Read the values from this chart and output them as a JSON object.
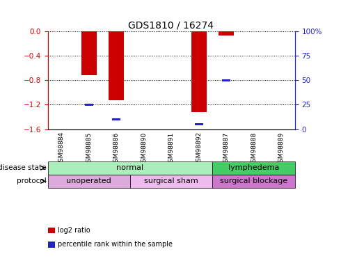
{
  "title": "GDS1810 / 16274",
  "samples": [
    "GSM98884",
    "GSM98885",
    "GSM98886",
    "GSM98890",
    "GSM98891",
    "GSM98892",
    "GSM98887",
    "GSM98888",
    "GSM98889"
  ],
  "log2_ratio": [
    0,
    -0.72,
    -1.13,
    0,
    0,
    -1.32,
    -0.07,
    0,
    0
  ],
  "percentile_rank": [
    null,
    25,
    10,
    null,
    null,
    5,
    50,
    null,
    null
  ],
  "ylim_min": -1.6,
  "ylim_max": 0,
  "yticks": [
    0,
    -0.4,
    -0.8,
    -1.2,
    -1.6
  ],
  "right_yticks": [
    100,
    75,
    50,
    25,
    0
  ],
  "bar_color": "#cc0000",
  "marker_color": "#2222cc",
  "disease_state_groups": [
    {
      "label": "normal",
      "start": 0,
      "end": 6,
      "color": "#aaeebb"
    },
    {
      "label": "lymphedema",
      "start": 6,
      "end": 9,
      "color": "#44cc66"
    }
  ],
  "protocol_groups": [
    {
      "label": "unoperated",
      "start": 0,
      "end": 3,
      "color": "#ddaadd"
    },
    {
      "label": "surgical sham",
      "start": 3,
      "end": 6,
      "color": "#eebbee"
    },
    {
      "label": "surgical blockage",
      "start": 6,
      "end": 9,
      "color": "#cc77cc"
    }
  ],
  "disease_state_label": "disease state",
  "protocol_label": "protocol",
  "legend_items": [
    {
      "label": "log2 ratio",
      "color": "#cc0000"
    },
    {
      "label": "percentile rank within the sample",
      "color": "#2222cc"
    }
  ],
  "tick_bg_color": "#cccccc",
  "background_color": "#ffffff"
}
